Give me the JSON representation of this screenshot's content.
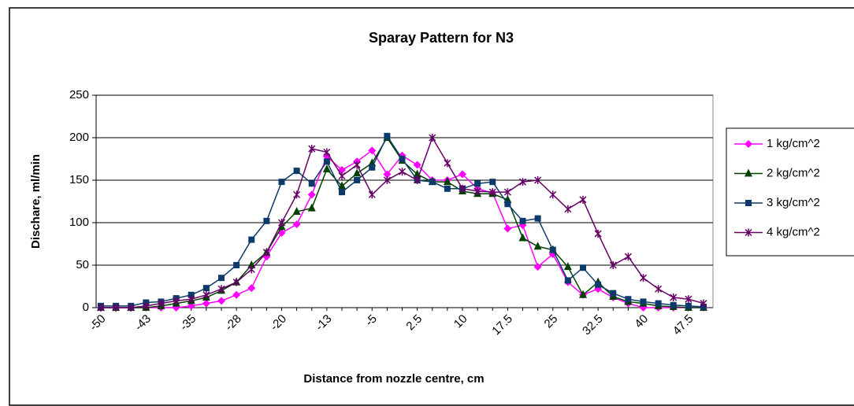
{
  "chart_data": {
    "type": "line",
    "title": "Sparay Pattern for N3",
    "x_label": "Distance from nozzle centre, cm",
    "y_label": "Dischare, ml/min",
    "categories": [
      "-50",
      null,
      null,
      "-43",
      null,
      null,
      "-35",
      null,
      null,
      "-28",
      null,
      null,
      "-20",
      null,
      null,
      "-13",
      null,
      null,
      "-5",
      null,
      null,
      "2.5",
      null,
      null,
      "10",
      null,
      null,
      "17.5",
      null,
      null,
      "25",
      null,
      null,
      "32.5",
      null,
      null,
      "40",
      null,
      null,
      "47.5",
      null
    ],
    "series": [
      {
        "name": "1 kg/cm^2",
        "color": "#ff00ff",
        "marker": "diamond",
        "values": [
          0,
          0,
          0,
          0,
          0,
          0,
          2,
          5,
          8,
          15,
          23,
          60,
          88,
          98,
          133,
          178,
          162,
          172,
          185,
          157,
          179,
          168,
          150,
          150,
          157,
          140,
          135,
          93,
          97,
          48,
          63,
          30,
          15,
          22,
          12,
          5,
          0,
          0,
          0,
          0,
          0
        ]
      },
      {
        "name": "2 kg/cm^2",
        "color": "#004000",
        "marker": "triangle",
        "values": [
          0,
          0,
          0,
          0,
          2,
          5,
          8,
          12,
          20,
          30,
          50,
          65,
          95,
          113,
          117,
          163,
          143,
          158,
          170,
          200,
          173,
          157,
          148,
          148,
          137,
          134,
          134,
          127,
          82,
          72,
          68,
          48,
          15,
          30,
          13,
          7,
          5,
          2,
          1,
          0,
          0
        ]
      },
      {
        "name": "3 kg/cm^2",
        "color": "#0b3a6b",
        "marker": "square",
        "values": [
          2,
          2,
          2,
          6,
          7,
          11,
          15,
          23,
          35,
          50,
          80,
          102,
          148,
          161,
          146,
          172,
          136,
          150,
          165,
          202,
          175,
          150,
          148,
          140,
          140,
          146,
          148,
          122,
          102,
          105,
          68,
          32,
          47,
          27,
          17,
          10,
          7,
          5,
          3,
          2,
          1
        ]
      },
      {
        "name": "4 kg/cm^2",
        "color": "#660066",
        "marker": "star",
        "values": [
          0,
          0,
          0,
          2,
          5,
          8,
          10,
          15,
          22,
          30,
          45,
          65,
          100,
          133,
          187,
          183,
          155,
          168,
          133,
          150,
          160,
          150,
          200,
          170,
          140,
          137,
          136,
          136,
          148,
          150,
          133,
          116,
          127,
          87,
          50,
          60,
          35,
          22,
          12,
          10,
          5
        ]
      }
    ],
    "ylim": [
      0,
      250
    ],
    "yticks": [
      0,
      50,
      100,
      150,
      200,
      250
    ],
    "grid": true,
    "legend": "right"
  }
}
